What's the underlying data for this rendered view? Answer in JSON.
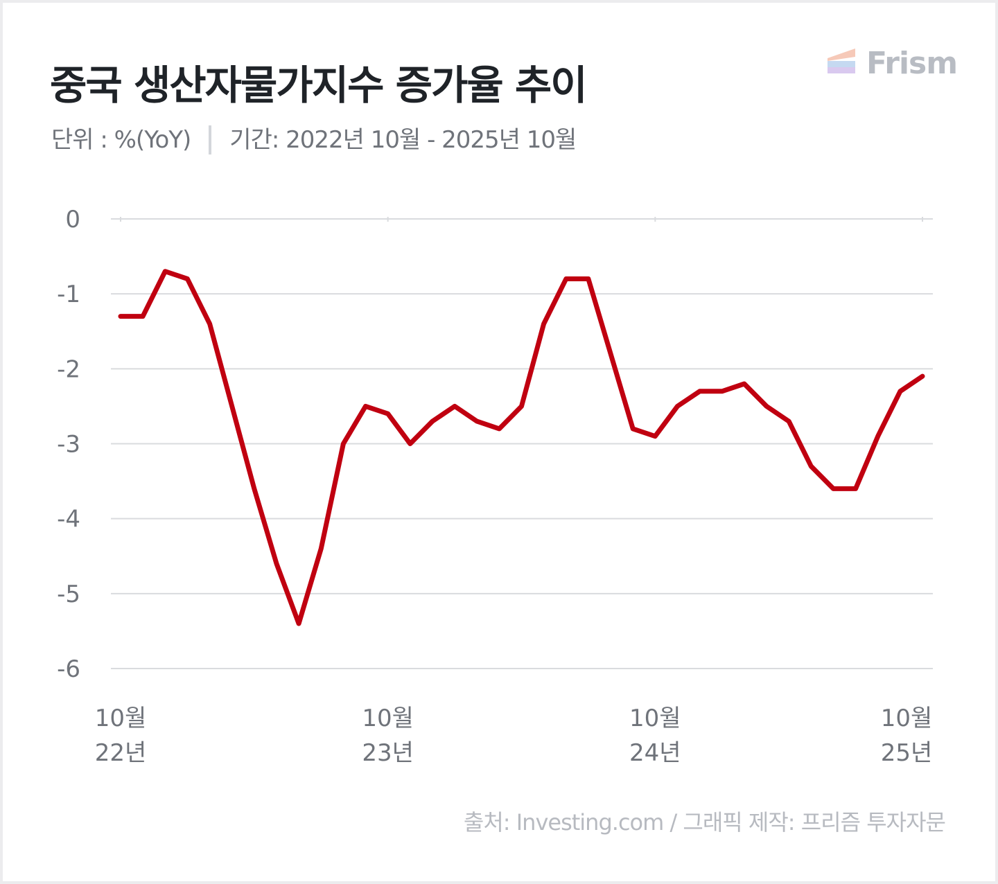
{
  "header": {
    "title": "중국 생산자물가지수 증가율 추이",
    "unit": "단위 : %(YoY)",
    "period": "기간: 2022년 10월 - 2025년 10월"
  },
  "logo": {
    "text": "Frism",
    "colors": [
      "#f6c9b8",
      "#c5d9f1",
      "#d9c9ef"
    ]
  },
  "footer": {
    "source": "출처: Investing.com / 그래픽 제작: 프리즘 투자자문"
  },
  "chart_data": {
    "type": "line",
    "title": "중국 생산자물가지수 증가율 추이",
    "xlabel": "",
    "ylabel": "단위 : %(YoY)",
    "ylim": [
      -6,
      0
    ],
    "yticks": [
      "0",
      "-1",
      "-2",
      "-3",
      "-4",
      "-5",
      "-6"
    ],
    "xticks": [
      {
        "index": 0,
        "month": "10월",
        "year": "22년"
      },
      {
        "index": 12,
        "month": "10월",
        "year": "23년"
      },
      {
        "index": 24,
        "month": "10월",
        "year": "24년"
      },
      {
        "index": 36,
        "month": "10월",
        "year": "25년"
      }
    ],
    "grid": true,
    "line_color": "#c00010",
    "series": [
      {
        "x": [
          "2022-10",
          "2022-11",
          "2022-12",
          "2023-01",
          "2023-02",
          "2023-03",
          "2023-04",
          "2023-05",
          "2023-06",
          "2023-07",
          "2023-08",
          "2023-09",
          "2023-10",
          "2023-11",
          "2023-12",
          "2024-01",
          "2024-02",
          "2024-03",
          "2024-04",
          "2024-05",
          "2024-06",
          "2024-07",
          "2024-08",
          "2024-09",
          "2024-10",
          "2024-11",
          "2024-12",
          "2025-01",
          "2025-02",
          "2025-03",
          "2025-04",
          "2025-05",
          "2025-06",
          "2025-07",
          "2025-08",
          "2025-09",
          "2025-10"
        ],
        "values": [
          -1.3,
          -1.3,
          -0.7,
          -0.8,
          -1.4,
          -2.5,
          -3.6,
          -4.6,
          -5.4,
          -4.4,
          -3.0,
          -2.5,
          -2.6,
          -3.0,
          -2.7,
          -2.5,
          -2.7,
          -2.8,
          -2.5,
          -1.4,
          -0.8,
          -0.8,
          -1.8,
          -2.8,
          -2.9,
          -2.5,
          -2.3,
          -2.3,
          -2.2,
          -2.5,
          -2.7,
          -3.3,
          -3.6,
          -3.6,
          -2.9,
          -2.3,
          -2.1
        ]
      }
    ]
  }
}
